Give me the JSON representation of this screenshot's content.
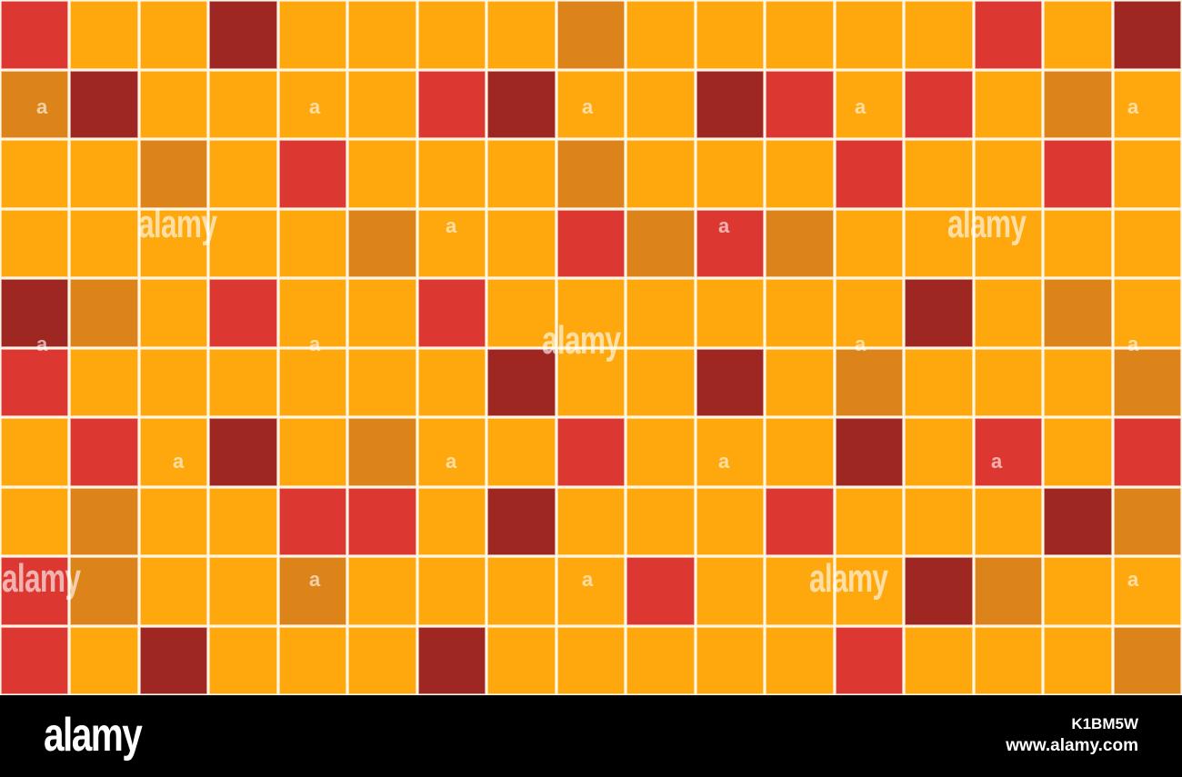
{
  "palette": {
    "Y": "#ffa80e",
    "O": "#dc841a",
    "R": "#dc3831",
    "D": "#9e2722"
  },
  "grid": {
    "columns": 17,
    "rows": 10,
    "cells": [
      "RYYDYYYYOYYYYYRYD",
      "ODYYYYRDYYDRYRYOY",
      "YYOYRYYYOYYYRYYRY",
      "YYYYYOYYROROYYYYY",
      "DOYRYYRYYYYYYDYOY",
      "RYYYYYYDYYDYOYYYO",
      "YRYDYOYYRYYYDYRYR",
      "YOYYRRYDYYYRYYYDO",
      "ROYYOYYYYRYYYDOYY",
      "RYDYYYDYYYYYRYYYO"
    ]
  },
  "watermark": {
    "brand": "alamy",
    "letter": "a"
  },
  "footer": {
    "logo": "alamy",
    "image_id": "K1BM5W",
    "url": "www.alamy.com"
  }
}
